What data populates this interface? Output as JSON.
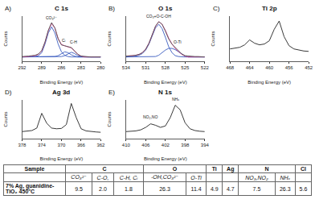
{
  "chart_data": [
    {
      "type": "line",
      "panel": "A)",
      "title": "C 1s",
      "xlabel": "Binding Energy (eV)",
      "ylabel": "Counts",
      "x": [
        292,
        291.5,
        291,
        290.5,
        290,
        289.5,
        289,
        288.5,
        288,
        287.5,
        287,
        286.5,
        286,
        285.5,
        285,
        284.5,
        284,
        283.5,
        283,
        282.5,
        282,
        281.5,
        281,
        280.5,
        280
      ],
      "series": [
        {
          "color": "#3a5bbf",
          "line_style": "solid",
          "values": [
            10,
            10,
            10,
            10,
            11,
            13,
            20,
            40,
            66,
            80,
            66,
            40,
            22,
            14,
            11,
            10,
            10,
            10,
            10,
            10,
            10,
            10,
            10,
            10,
            10
          ]
        },
        {
          "color": "#3a5bbf",
          "line_style": "solid",
          "values": [
            10,
            10,
            10,
            10,
            10,
            10,
            10,
            10,
            10,
            10,
            11,
            13,
            18,
            22,
            20,
            15,
            12,
            10,
            10,
            10,
            10,
            10,
            10,
            10,
            10
          ]
        },
        {
          "color": "#3a5bbf",
          "line_style": "solid",
          "values": [
            10,
            10,
            10,
            10,
            10,
            10,
            10,
            10,
            10,
            10,
            10,
            10,
            11,
            13,
            17,
            21,
            18,
            13,
            11,
            10,
            10,
            10,
            10,
            10,
            10
          ]
        },
        {
          "color": "#d63c8c",
          "line_style": "solid",
          "values": [
            10,
            10,
            11,
            12,
            13,
            16,
            24,
            44,
            71,
            88,
            77,
            53,
            39,
            36,
            34,
            31,
            24,
            16,
            12,
            10,
            10,
            10,
            10,
            10,
            10
          ]
        },
        {
          "color": "#555555",
          "line_style": "solid",
          "values": [
            11,
            11,
            12,
            13,
            14,
            17,
            25,
            45,
            72,
            90,
            78,
            52,
            38,
            36,
            34,
            32,
            24,
            16,
            12,
            11,
            10,
            10,
            10,
            10,
            10
          ]
        }
      ],
      "xlim": [
        292,
        280
      ],
      "xticks": [
        292,
        289,
        286,
        283,
        280
      ],
      "ylim": [
        0,
        105
      ],
      "tick_labels": "x",
      "grid": false,
      "annotations": [
        {
          "text": "CO₃²⁻",
          "x": 287.5,
          "y": 92
        },
        {
          "text": "Cᵢ",
          "x": 285.6,
          "y": 40
        },
        {
          "text": "C-H",
          "x": 284.1,
          "y": 35
        }
      ]
    },
    {
      "type": "line",
      "panel": "B)",
      "title": "O 1s",
      "xlabel": "Binding Energy (eV)",
      "ylabel": "Counts",
      "x": [
        534,
        533.5,
        533,
        532.5,
        532,
        531.5,
        531,
        530.5,
        530,
        529.5,
        529,
        528.5,
        528,
        527.5,
        527,
        526.5,
        526,
        525.5,
        525,
        524.5,
        524,
        523.5,
        523,
        522.5,
        522
      ],
      "series": [
        {
          "color": "#3a5bbf",
          "line_style": "solid",
          "values": [
            10,
            10,
            11,
            12,
            14,
            18,
            26,
            40,
            60,
            78,
            86,
            76,
            56,
            34,
            20,
            13,
            11,
            10,
            10,
            10,
            10,
            10,
            10,
            10,
            10
          ]
        },
        {
          "color": "#3a5bbf",
          "line_style": "solid",
          "values": [
            10,
            10,
            10,
            10,
            10,
            10,
            10,
            10,
            10,
            11,
            14,
            20,
            26,
            30,
            30,
            27,
            22,
            16,
            12,
            10,
            10,
            10,
            10,
            10,
            10
          ]
        },
        {
          "color": "#d63c8c",
          "line_style": "solid",
          "values": [
            12,
            12,
            13,
            14,
            16,
            20,
            28,
            42,
            62,
            81,
            92,
            86,
            72,
            54,
            40,
            30,
            23,
            16,
            12,
            10,
            10,
            10,
            10,
            10,
            10
          ]
        },
        {
          "color": "#555555",
          "line_style": "solid",
          "values": [
            12,
            12,
            13,
            14,
            16,
            20,
            28,
            42,
            62,
            82,
            92,
            86,
            70,
            52,
            40,
            32,
            24,
            17,
            13,
            12,
            11,
            11,
            11,
            10,
            10
          ]
        }
      ],
      "xlim": [
        534,
        522
      ],
      "xticks": [
        534,
        531,
        528,
        525,
        522
      ],
      "ylim": [
        0,
        105
      ],
      "tick_labels": "x",
      "grid": false,
      "annotations": [
        {
          "text": "CO₃+O-C-OH",
          "x": 529,
          "y": 95
        },
        {
          "text": "O-Ti",
          "x": 526.2,
          "y": 35
        }
      ]
    },
    {
      "type": "line",
      "panel": "C)",
      "title": "Ti 2p",
      "xlabel": "Binding Energy (eV)",
      "ylabel": "Counts",
      "x": [
        468,
        467,
        466,
        465,
        464,
        463,
        462,
        461,
        460,
        459,
        458,
        457,
        456,
        455,
        454,
        453,
        452
      ],
      "series": [
        {
          "color": "#222222",
          "line_style": "solid",
          "values": [
            30,
            32,
            34,
            40,
            52,
            44,
            40,
            42,
            50,
            78,
            98,
            60,
            38,
            30,
            27,
            25,
            24
          ]
        }
      ],
      "xlim": [
        468,
        452
      ],
      "xticks": [
        468,
        464,
        460,
        456,
        452
      ],
      "ylim": [
        0,
        110
      ],
      "tick_labels": "x",
      "grid": false
    },
    {
      "type": "line",
      "panel": "D)",
      "title": "Ag 3d",
      "xlabel": "Binding Energy (eV)",
      "ylabel": "Counts",
      "x": [
        378,
        377,
        376,
        375,
        374,
        373,
        372,
        371,
        370,
        369,
        368,
        367,
        366,
        365,
        364,
        363,
        362
      ],
      "series": [
        {
          "color": "#222222",
          "line_style": "solid",
          "values": [
            20,
            21,
            23,
            30,
            72,
            44,
            30,
            28,
            29,
            40,
            100,
            60,
            28,
            22,
            20,
            19,
            18
          ]
        }
      ],
      "xlim": [
        378,
        362
      ],
      "xticks": [
        378,
        374,
        370,
        366,
        362
      ],
      "ylim": [
        0,
        110
      ],
      "tick_labels": "x",
      "grid": false
    },
    {
      "type": "line",
      "panel": "E)",
      "title": "N 1s",
      "xlabel": "Binding Energy (eV)",
      "ylabel": "Counts",
      "x": [
        410,
        409,
        408,
        407,
        406,
        405,
        404,
        403,
        402,
        401,
        400,
        399,
        398,
        397,
        396,
        395,
        394
      ],
      "series": [
        {
          "color": "#222222",
          "line_style": "solid",
          "values": [
            20,
            21,
            22,
            25,
            32,
            42,
            38,
            32,
            36,
            60,
            95,
            82,
            45,
            28,
            23,
            21,
            20
          ]
        }
      ],
      "xlim": [
        410,
        394
      ],
      "xticks": [
        410,
        406,
        402,
        398,
        394
      ],
      "ylim": [
        0,
        110
      ],
      "tick_labels": "x",
      "grid": false,
      "annotations": [
        {
          "text": "NO₂,NO",
          "x": 405,
          "y": 50
        },
        {
          "text": "NHₓ",
          "x": 400,
          "y": 100
        }
      ]
    }
  ],
  "table": {
    "header": [
      {
        "text": "Sample",
        "columns": 1
      },
      {
        "text": "C",
        "columns": 3
      },
      {
        "text": "O",
        "columns": 2
      },
      {
        "text": "Ti",
        "columns": 1
      },
      {
        "text": "Ag",
        "columns": 1
      },
      {
        "text": "N",
        "columns": 2
      },
      {
        "text": "Cl",
        "columns": 1
      }
    ],
    "subheader": [
      null,
      "CO₃²⁻",
      "C-O,",
      "C-H, Cᵢ",
      "-OH,CO₃²⁻",
      "O-Ti",
      null,
      null,
      "NO₃,NO₂",
      "NHₓ",
      null
    ],
    "rows": [
      [
        "7% Ag, guanidine-TiO₂ 450°C",
        "9.5",
        "2.0",
        "1.8",
        "26.3",
        "11.4",
        "4.9",
        "4.7",
        "7.5",
        "26.3",
        "5.6"
      ]
    ]
  }
}
